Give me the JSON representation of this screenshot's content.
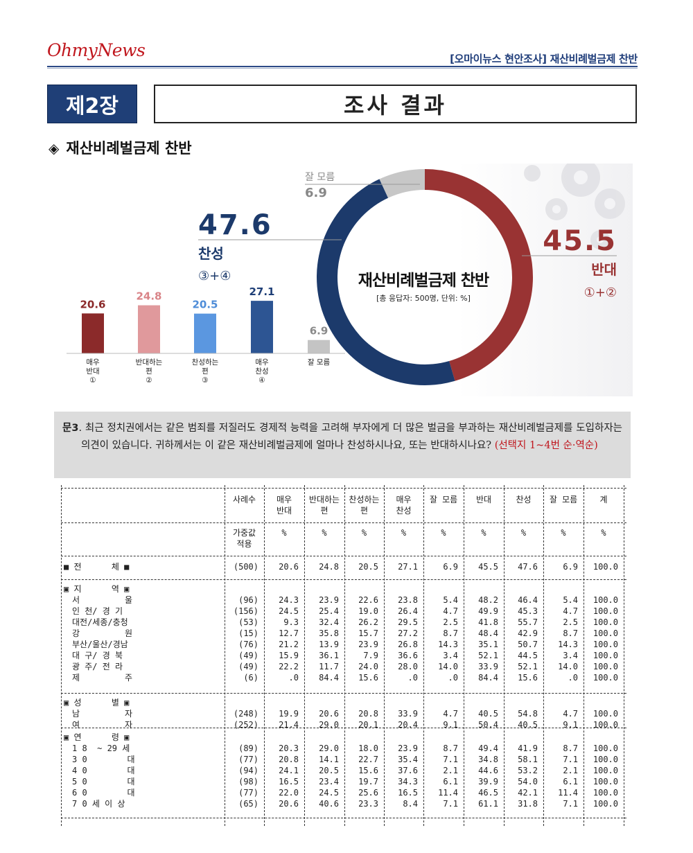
{
  "header": {
    "logo": "OhmyNews",
    "doc_title": "[오마이뉴스 현안조사] 재산비례벌금제 찬반"
  },
  "chapter": {
    "label": "제2장",
    "title": "조사 결과"
  },
  "section": {
    "marker": "◈",
    "title": "재산비례벌금제 찬반"
  },
  "chart_data": {
    "type": "pie",
    "donut": {
      "center_title": "재산비례벌금제 찬반",
      "center_subtitle": "[총 응답자: 500명, 단위: %]",
      "slices": [
        {
          "name": "반대",
          "value": 45.5,
          "note": "①+②",
          "color": "#993333"
        },
        {
          "name": "찬성",
          "value": 47.6,
          "note": "③+④",
          "color": "#1c3a6b"
        },
        {
          "name": "잘 모름",
          "value": 6.9,
          "note": "",
          "color": "#c7c7c7"
        }
      ],
      "labels": {
        "against_value": "45.5",
        "against_name": "반대",
        "against_note": "①+②",
        "for_value": "47.6",
        "for_name": "찬성",
        "for_note": "③+④",
        "dk_name": "잘 모름",
        "dk_value": "6.9"
      }
    },
    "bars": {
      "type": "bar",
      "ylim": [
        0,
        30
      ],
      "categories": [
        {
          "lines": [
            "매우",
            "반대",
            "①"
          ],
          "value": 20.6,
          "label": "20.6",
          "color": "#8b2a2a",
          "label_color": "#8b2a2a"
        },
        {
          "lines": [
            "반대하는",
            "편",
            "②"
          ],
          "value": 24.8,
          "label": "24.8",
          "color": "#e0999c",
          "label_color": "#d98488"
        },
        {
          "lines": [
            "찬성하는",
            "편",
            "③"
          ],
          "value": 20.5,
          "label": "20.5",
          "color": "#5b97e0",
          "label_color": "#4f8dd8"
        },
        {
          "lines": [
            "매우",
            "찬성",
            "④"
          ],
          "value": 27.1,
          "label": "27.1",
          "color": "#2d5593",
          "label_color": "#1f3f77"
        },
        {
          "lines": [
            "잘 모름"
          ],
          "value": 6.9,
          "label": "6.9",
          "color": "#c4c4c4",
          "label_color": "#8a8a8a"
        }
      ]
    }
  },
  "question": {
    "label": "문3",
    "text": "최근 정치권에서는 같은 범죄를 저질러도 경제적 능력을 고려해 부자에게 더 많은 벌금을 부과하는 재산비례벌금제를 도입하자는 의견이 있습니다. 귀하께서는 이 같은 재산비례벌금제에 얼마나 찬성하시나요, 또는 반대하시나요?",
    "note": "(선택지 1~4번 순·역순)"
  },
  "table": {
    "columns": [
      {
        "l1": "사례수",
        "l2": "",
        "u1": "가중값",
        "u2": "적용"
      },
      {
        "l1": "매우",
        "l2": "반대",
        "u1": "%",
        "u2": ""
      },
      {
        "l1": "반대하는",
        "l2": "편",
        "u1": "%",
        "u2": ""
      },
      {
        "l1": "찬성하는",
        "l2": "편",
        "u1": "%",
        "u2": ""
      },
      {
        "l1": "매우",
        "l2": "찬성",
        "u1": "%",
        "u2": ""
      },
      {
        "l1": "잘 모름",
        "l2": "",
        "u1": "%",
        "u2": ""
      },
      {
        "l1": "반대",
        "l2": "",
        "u1": "%",
        "u2": ""
      },
      {
        "l1": "찬성",
        "l2": "",
        "u1": "%",
        "u2": ""
      },
      {
        "l1": "잘 모름",
        "l2": "",
        "u1": "%",
        "u2": ""
      },
      {
        "l1": "계",
        "l2": "",
        "u1": "%",
        "u2": ""
      }
    ],
    "groups": [
      {
        "title": "■ 전      체 ■",
        "header_row": true,
        "rows": [
          {
            "label": "",
            "values": [
              "(500)",
              "20.6",
              "24.8",
              "20.5",
              "27.1",
              "6.9",
              "45.5",
              "47.6",
              "6.9",
              "100.0"
            ]
          }
        ]
      },
      {
        "title": "▣ 지      역 ▣",
        "rows": [
          {
            "label": "서         울",
            "values": [
              "(96)",
              "24.3",
              "23.9",
              "22.6",
              "23.8",
              "5.4",
              "48.2",
              "46.4",
              "5.4",
              "100.0"
            ]
          },
          {
            "label": "인 천/ 경 기",
            "values": [
              "(156)",
              "24.5",
              "25.4",
              "19.0",
              "26.4",
              "4.7",
              "49.9",
              "45.3",
              "4.7",
              "100.0"
            ]
          },
          {
            "label": "대전/세종/충청",
            "values": [
              "(53)",
              "9.3",
              "32.4",
              "26.2",
              "29.5",
              "2.5",
              "41.8",
              "55.7",
              "2.5",
              "100.0"
            ]
          },
          {
            "label": "강         원",
            "values": [
              "(15)",
              "12.7",
              "35.8",
              "15.7",
              "27.2",
              "8.7",
              "48.4",
              "42.9",
              "8.7",
              "100.0"
            ]
          },
          {
            "label": "부산/울산/경남",
            "values": [
              "(76)",
              "21.2",
              "13.9",
              "23.9",
              "26.8",
              "14.3",
              "35.1",
              "50.7",
              "14.3",
              "100.0"
            ]
          },
          {
            "label": "대 구/ 경 북",
            "values": [
              "(49)",
              "15.9",
              "36.1",
              "7.9",
              "36.6",
              "3.4",
              "52.1",
              "44.5",
              "3.4",
              "100.0"
            ]
          },
          {
            "label": "광 주/ 전 라",
            "values": [
              "(49)",
              "22.2",
              "11.7",
              "24.0",
              "28.0",
              "14.0",
              "33.9",
              "52.1",
              "14.0",
              "100.0"
            ]
          },
          {
            "label": "제         주",
            "values": [
              "(6)",
              ".0",
              "84.4",
              "15.6",
              ".0",
              ".0",
              "84.4",
              "15.6",
              ".0",
              "100.0"
            ]
          }
        ]
      },
      {
        "title": "▣ 성      별 ▣",
        "rows": [
          {
            "label": "남         자",
            "values": [
              "(248)",
              "19.9",
              "20.6",
              "20.8",
              "33.9",
              "4.7",
              "40.5",
              "54.8",
              "4.7",
              "100.0"
            ]
          },
          {
            "label": "여         자",
            "values": [
              "(252)",
              "21.4",
              "29.0",
              "20.1",
              "20.4",
              "9.1",
              "50.4",
              "40.5",
              "9.1",
              "100.0"
            ]
          }
        ]
      },
      {
        "title": "▣ 연      령 ▣",
        "rows": [
          {
            "label": "1 8  ~ 29 세",
            "values": [
              "(89)",
              "20.3",
              "29.0",
              "18.0",
              "23.9",
              "8.7",
              "49.4",
              "41.9",
              "8.7",
              "100.0"
            ]
          },
          {
            "label": "3 0        대",
            "values": [
              "(77)",
              "20.8",
              "14.1",
              "22.7",
              "35.4",
              "7.1",
              "34.8",
              "58.1",
              "7.1",
              "100.0"
            ]
          },
          {
            "label": "4 0        대",
            "values": [
              "(94)",
              "24.1",
              "20.5",
              "15.6",
              "37.6",
              "2.1",
              "44.6",
              "53.2",
              "2.1",
              "100.0"
            ]
          },
          {
            "label": "5 0        대",
            "values": [
              "(98)",
              "16.5",
              "23.4",
              "19.7",
              "34.3",
              "6.1",
              "39.9",
              "54.0",
              "6.1",
              "100.0"
            ]
          },
          {
            "label": "6 0        대",
            "values": [
              "(77)",
              "22.0",
              "24.5",
              "25.6",
              "16.5",
              "11.4",
              "46.5",
              "42.1",
              "11.4",
              "100.0"
            ]
          },
          {
            "label": "7 0 세 이 상",
            "values": [
              "(65)",
              "20.6",
              "40.6",
              "23.3",
              "8.4",
              "7.1",
              "61.1",
              "31.8",
              "7.1",
              "100.0"
            ]
          }
        ]
      }
    ]
  }
}
